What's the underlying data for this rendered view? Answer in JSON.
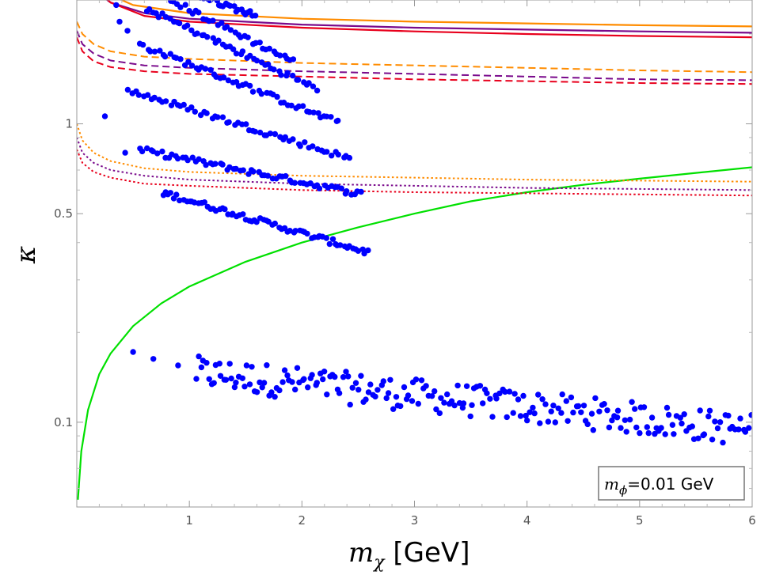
{
  "chart_data": {
    "type": "scatter",
    "title": "",
    "xlabel": "m_χ [GeV]",
    "xlabel_main": "m",
    "xlabel_sub": "χ",
    "xlabel_unit": " [GeV]",
    "ylabel": "κ",
    "x_scale": "linear",
    "y_scale": "log",
    "xlim": [
      0.0,
      6.0
    ],
    "ylim": [
      0.052,
      2.6
    ],
    "x_ticks": [
      1,
      2,
      3,
      4,
      5,
      6
    ],
    "x_tick_labels": [
      "1",
      "2",
      "3",
      "4",
      "5",
      "6"
    ],
    "y_ticks": [
      0.1,
      0.5,
      1
    ],
    "y_tick_labels": [
      "0.1",
      "0.5",
      "1"
    ],
    "legend_box": {
      "main": "m",
      "sub": "ϕ",
      "rest": "=0.01 GeV",
      "full_text": "m_ϕ=0.01 GeV",
      "placement": "bottom-right"
    },
    "colors": {
      "points": "#0000ff",
      "green": "#00e000",
      "orange": "#ff8c00",
      "purple": "#7a0a8c",
      "red": "#e8001c",
      "frame": "#999999"
    },
    "curves": [
      {
        "name": "green-solid",
        "color": "green",
        "style": "solid",
        "x": [
          0.01,
          0.04,
          0.1,
          0.2,
          0.3,
          0.5,
          0.75,
          1.0,
          1.5,
          2.0,
          2.5,
          3.0,
          3.5,
          4.0,
          4.5,
          5.0,
          5.5,
          6.0
        ],
        "y": [
          0.055,
          0.08,
          0.11,
          0.145,
          0.17,
          0.21,
          0.25,
          0.285,
          0.345,
          0.4,
          0.45,
          0.5,
          0.55,
          0.59,
          0.625,
          0.655,
          0.685,
          0.715
        ]
      },
      {
        "name": "orange-solid",
        "color": "orange",
        "style": "solid",
        "x": [
          0.0,
          0.3,
          0.5,
          1.0,
          2.0,
          3.0,
          4.0,
          5.0,
          6.0
        ],
        "y": [
          3.0,
          2.7,
          2.5,
          2.35,
          2.25,
          2.2,
          2.17,
          2.14,
          2.12
        ]
      },
      {
        "name": "purple-solid",
        "color": "purple",
        "style": "solid",
        "x": [
          0.05,
          0.3,
          0.6,
          1.0,
          2.0,
          3.0,
          4.0,
          5.0,
          6.0
        ],
        "y": [
          3.0,
          2.55,
          2.35,
          2.25,
          2.15,
          2.1,
          2.07,
          2.04,
          2.02
        ]
      },
      {
        "name": "red-solid",
        "color": "red",
        "style": "solid",
        "x": [
          0.1,
          0.3,
          0.6,
          1.0,
          2.0,
          3.0,
          4.0,
          5.0,
          6.0
        ],
        "y": [
          3.0,
          2.55,
          2.3,
          2.2,
          2.1,
          2.04,
          2.0,
          1.97,
          1.95
        ]
      },
      {
        "name": "orange-dashed",
        "color": "orange",
        "style": "dashed",
        "x": [
          0.0,
          0.05,
          0.15,
          0.3,
          0.6,
          1.0,
          2.0,
          3.0,
          4.0,
          5.0,
          6.0
        ],
        "y": [
          2.2,
          2.0,
          1.85,
          1.75,
          1.68,
          1.65,
          1.6,
          1.57,
          1.54,
          1.51,
          1.49
        ]
      },
      {
        "name": "purple-dashed",
        "color": "purple",
        "style": "dashed",
        "x": [
          0.0,
          0.05,
          0.15,
          0.3,
          0.6,
          1.0,
          2.0,
          3.0,
          4.0,
          5.0,
          6.0
        ],
        "y": [
          2.05,
          1.85,
          1.72,
          1.63,
          1.57,
          1.54,
          1.5,
          1.47,
          1.44,
          1.41,
          1.4
        ]
      },
      {
        "name": "red-dashed",
        "color": "red",
        "style": "dashed",
        "x": [
          0.0,
          0.05,
          0.15,
          0.3,
          0.6,
          1.0,
          2.0,
          3.0,
          4.0,
          5.0,
          6.0
        ],
        "y": [
          1.95,
          1.75,
          1.62,
          1.55,
          1.5,
          1.47,
          1.44,
          1.41,
          1.39,
          1.37,
          1.36
        ]
      },
      {
        "name": "orange-dotted",
        "color": "orange",
        "style": "dotted",
        "x": [
          0.0,
          0.05,
          0.15,
          0.3,
          0.6,
          1.0,
          2.0,
          3.0,
          4.0,
          5.0,
          6.0
        ],
        "y": [
          1.0,
          0.88,
          0.8,
          0.75,
          0.71,
          0.69,
          0.67,
          0.66,
          0.65,
          0.645,
          0.64
        ]
      },
      {
        "name": "purple-dotted",
        "color": "purple",
        "style": "dotted",
        "x": [
          0.0,
          0.05,
          0.15,
          0.3,
          0.6,
          1.0,
          2.0,
          3.0,
          4.0,
          5.0,
          6.0
        ],
        "y": [
          0.9,
          0.8,
          0.74,
          0.7,
          0.67,
          0.65,
          0.63,
          0.62,
          0.61,
          0.605,
          0.6
        ]
      },
      {
        "name": "red-dotted",
        "color": "red",
        "style": "dotted",
        "x": [
          0.0,
          0.05,
          0.15,
          0.3,
          0.6,
          1.0,
          2.0,
          3.0,
          4.0,
          5.0,
          6.0
        ],
        "y": [
          0.82,
          0.74,
          0.69,
          0.66,
          0.63,
          0.62,
          0.6,
          0.59,
          0.585,
          0.58,
          0.575
        ]
      }
    ],
    "point_bands": [
      {
        "name": "band-low",
        "x_start": 1.05,
        "x_end": 6.0,
        "y_start": 0.147,
        "y_end": 0.094,
        "count": 220,
        "scatter": 0.055
      },
      {
        "name": "band-1",
        "x_start": 0.75,
        "x_end": 2.6,
        "y_start": 0.59,
        "y_end": 0.37,
        "count": 70,
        "scatter": 0.01
      },
      {
        "name": "band-2",
        "x_start": 0.55,
        "x_end": 2.55,
        "y_start": 0.82,
        "y_end": 0.58,
        "count": 65,
        "scatter": 0.01
      },
      {
        "name": "band-3",
        "x_start": 0.45,
        "x_end": 2.45,
        "y_start": 1.3,
        "y_end": 0.76,
        "count": 60,
        "scatter": 0.01
      },
      {
        "name": "band-4",
        "x_start": 0.55,
        "x_end": 2.35,
        "y_start": 1.85,
        "y_end": 1.0,
        "count": 55,
        "scatter": 0.01
      },
      {
        "name": "band-5",
        "x_start": 0.6,
        "x_end": 2.15,
        "y_start": 2.45,
        "y_end": 1.3,
        "count": 50,
        "scatter": 0.01
      },
      {
        "name": "band-6",
        "x_start": 0.7,
        "x_end": 1.95,
        "y_start": 2.75,
        "y_end": 1.6,
        "count": 40,
        "scatter": 0.01
      },
      {
        "name": "band-7",
        "x_start": 0.95,
        "x_end": 1.6,
        "y_start": 2.8,
        "y_end": 2.3,
        "count": 30,
        "scatter": 0.01
      }
    ],
    "isolated_points": [
      {
        "x": 0.5,
        "y": 0.172
      },
      {
        "x": 0.68,
        "y": 0.163
      },
      {
        "x": 0.9,
        "y": 0.155
      },
      {
        "x": 0.25,
        "y": 1.06
      },
      {
        "x": 0.43,
        "y": 0.8
      },
      {
        "x": 0.38,
        "y": 2.2
      },
      {
        "x": 0.45,
        "y": 2.05
      },
      {
        "x": 0.35,
        "y": 2.5
      }
    ]
  }
}
